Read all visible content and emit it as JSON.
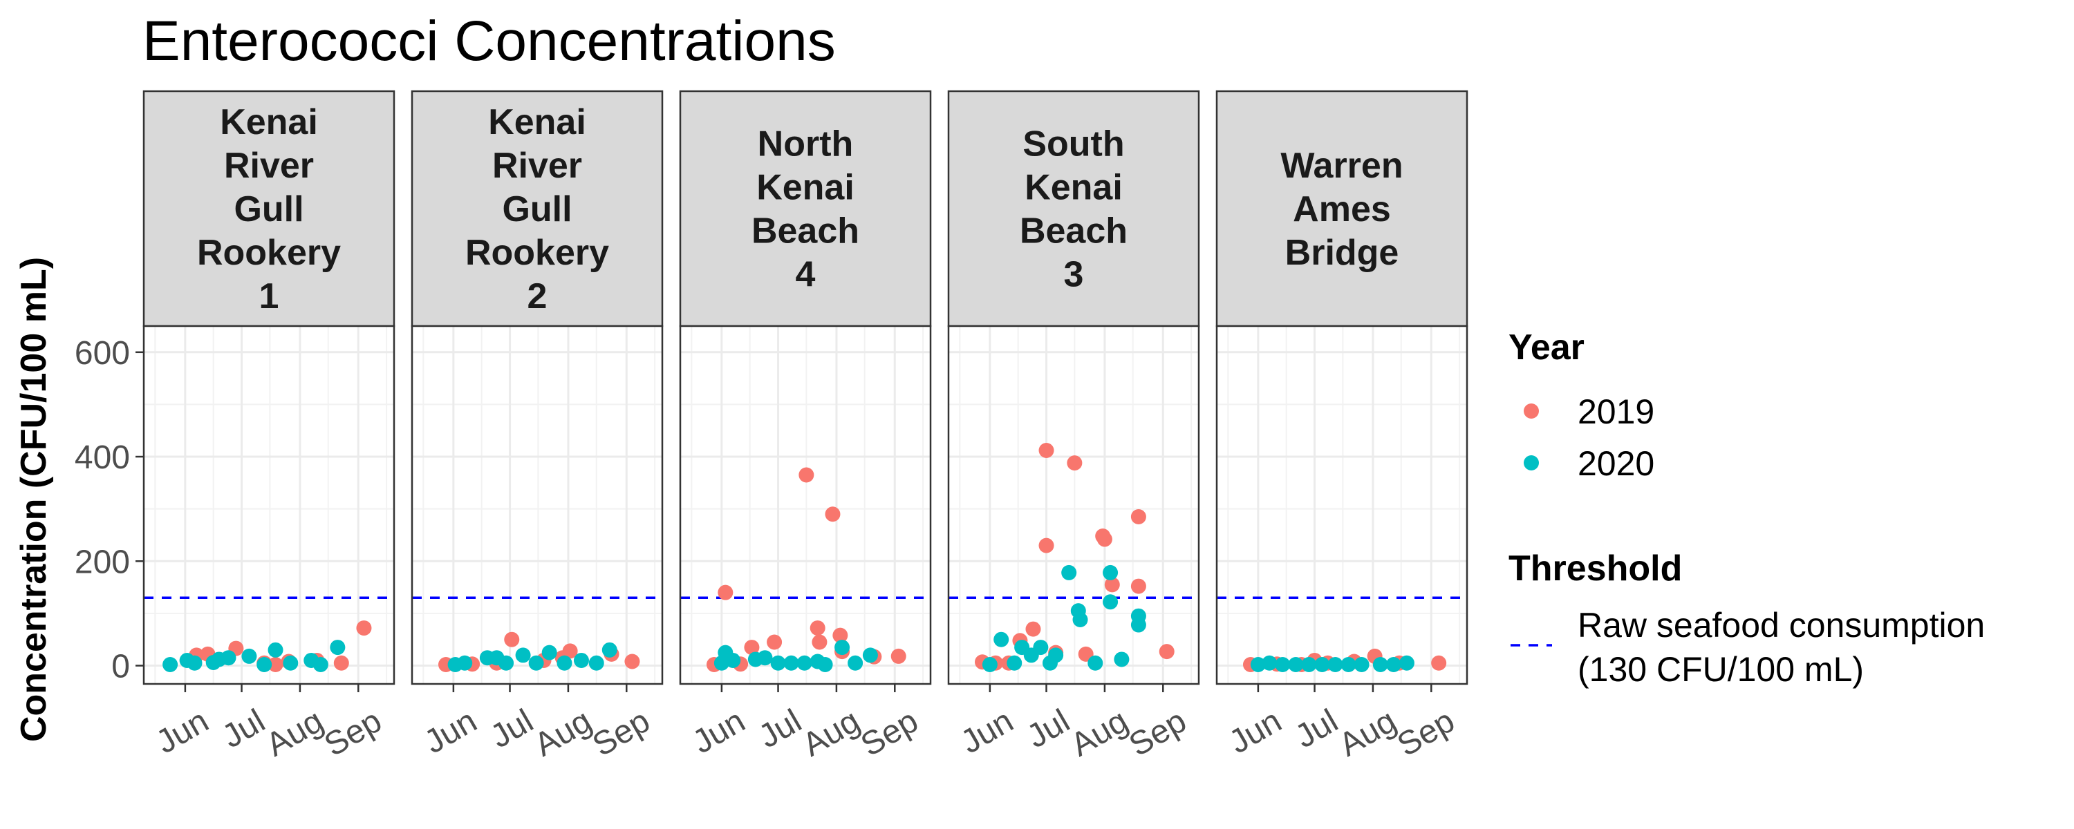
{
  "chart_data": {
    "type": "scatter",
    "title": "Enterococci Concentrations",
    "ylabel": "Concentration (CFU/100 mL)",
    "xlabel": "",
    "ylim": [
      -35,
      650
    ],
    "yticks": [
      0,
      200,
      400,
      600
    ],
    "xlim": [
      "2019-05-10",
      "2019-09-20"
    ],
    "xticks": [
      {
        "label": "Jun",
        "date": "2019-06-01"
      },
      {
        "label": "Jul",
        "date": "2019-07-01"
      },
      {
        "label": "Aug",
        "date": "2019-08-01"
      },
      {
        "label": "Sep",
        "date": "2019-09-01"
      }
    ],
    "grid": true,
    "legend_position": "right",
    "facets": [
      {
        "strip": [
          "Kenai",
          "River",
          "Gull",
          "Rookery",
          "1"
        ]
      },
      {
        "strip": [
          "Kenai",
          "River",
          "Gull",
          "Rookery",
          "2"
        ]
      },
      {
        "strip": [
          "North",
          "Kenai",
          "Beach",
          "4"
        ]
      },
      {
        "strip": [
          "South",
          "Kenai",
          "Beach",
          "3"
        ]
      },
      {
        "strip": [
          "Warren",
          "Ames",
          "Bridge"
        ]
      }
    ],
    "series": [
      {
        "name": "2019",
        "color": "#f8766d",
        "points": [
          {
            "facet": 0,
            "x": "2019-06-07",
            "y": 20
          },
          {
            "facet": 0,
            "x": "2019-06-13",
            "y": 22
          },
          {
            "facet": 0,
            "x": "2019-06-28",
            "y": 33
          },
          {
            "facet": 0,
            "x": "2019-07-13",
            "y": 5
          },
          {
            "facet": 0,
            "x": "2019-07-19",
            "y": 2
          },
          {
            "facet": 0,
            "x": "2019-07-26",
            "y": 8
          },
          {
            "facet": 0,
            "x": "2019-08-10",
            "y": 10
          },
          {
            "facet": 0,
            "x": "2019-08-23",
            "y": 5
          },
          {
            "facet": 0,
            "x": "2019-09-04",
            "y": 72
          },
          {
            "facet": 1,
            "x": "2019-05-28",
            "y": 2
          },
          {
            "facet": 1,
            "x": "2019-06-11",
            "y": 3
          },
          {
            "facet": 1,
            "x": "2019-06-24",
            "y": 5
          },
          {
            "facet": 1,
            "x": "2019-07-02",
            "y": 50
          },
          {
            "facet": 1,
            "x": "2019-07-19",
            "y": 10
          },
          {
            "facet": 1,
            "x": "2019-07-29",
            "y": 15
          },
          {
            "facet": 1,
            "x": "2019-08-02",
            "y": 28
          },
          {
            "facet": 1,
            "x": "2019-08-24",
            "y": 22
          },
          {
            "facet": 1,
            "x": "2019-09-04",
            "y": 8
          },
          {
            "facet": 2,
            "x": "2019-05-28",
            "y": 2
          },
          {
            "facet": 2,
            "x": "2019-06-03",
            "y": 140
          },
          {
            "facet": 2,
            "x": "2019-06-11",
            "y": 3
          },
          {
            "facet": 2,
            "x": "2019-06-17",
            "y": 35
          },
          {
            "facet": 2,
            "x": "2019-06-29",
            "y": 45
          },
          {
            "facet": 2,
            "x": "2019-07-16",
            "y": 365
          },
          {
            "facet": 2,
            "x": "2019-07-22",
            "y": 72
          },
          {
            "facet": 2,
            "x": "2019-07-23",
            "y": 45
          },
          {
            "facet": 2,
            "x": "2019-07-30",
            "y": 290
          },
          {
            "facet": 2,
            "x": "2019-08-03",
            "y": 58
          },
          {
            "facet": 2,
            "x": "2019-08-04",
            "y": 27
          },
          {
            "facet": 2,
            "x": "2019-08-21",
            "y": 17
          },
          {
            "facet": 2,
            "x": "2019-09-03",
            "y": 18
          },
          {
            "facet": 3,
            "x": "2019-05-28",
            "y": 7
          },
          {
            "facet": 3,
            "x": "2019-06-04",
            "y": 5
          },
          {
            "facet": 3,
            "x": "2019-06-11",
            "y": 5
          },
          {
            "facet": 3,
            "x": "2019-06-17",
            "y": 48
          },
          {
            "facet": 3,
            "x": "2019-06-24",
            "y": 70
          },
          {
            "facet": 3,
            "x": "2019-07-01",
            "y": 412
          },
          {
            "facet": 3,
            "x": "2019-07-01",
            "y": 230
          },
          {
            "facet": 3,
            "x": "2019-07-06",
            "y": 25
          },
          {
            "facet": 3,
            "x": "2019-07-16",
            "y": 388
          },
          {
            "facet": 3,
            "x": "2019-07-22",
            "y": 22
          },
          {
            "facet": 3,
            "x": "2019-07-31",
            "y": 248
          },
          {
            "facet": 3,
            "x": "2019-08-01",
            "y": 242
          },
          {
            "facet": 3,
            "x": "2019-08-05",
            "y": 155
          },
          {
            "facet": 3,
            "x": "2019-08-19",
            "y": 285
          },
          {
            "facet": 3,
            "x": "2019-08-19",
            "y": 152
          },
          {
            "facet": 3,
            "x": "2019-09-03",
            "y": 27
          },
          {
            "facet": 4,
            "x": "2019-05-28",
            "y": 2
          },
          {
            "facet": 4,
            "x": "2019-06-11",
            "y": 3
          },
          {
            "facet": 4,
            "x": "2019-06-24",
            "y": 2
          },
          {
            "facet": 4,
            "x": "2019-07-01",
            "y": 10
          },
          {
            "facet": 4,
            "x": "2019-07-08",
            "y": 5
          },
          {
            "facet": 4,
            "x": "2019-07-22",
            "y": 8
          },
          {
            "facet": 4,
            "x": "2019-08-02",
            "y": 18
          },
          {
            "facet": 4,
            "x": "2019-08-15",
            "y": 5
          },
          {
            "facet": 4,
            "x": "2019-09-05",
            "y": 5
          }
        ]
      },
      {
        "name": "2020",
        "color": "#00bfc4",
        "points": [
          {
            "facet": 0,
            "x": "2019-05-24",
            "y": 2
          },
          {
            "facet": 0,
            "x": "2019-06-02",
            "y": 10
          },
          {
            "facet": 0,
            "x": "2019-06-06",
            "y": 5
          },
          {
            "facet": 0,
            "x": "2019-06-16",
            "y": 6
          },
          {
            "facet": 0,
            "x": "2019-06-19",
            "y": 12
          },
          {
            "facet": 0,
            "x": "2019-06-24",
            "y": 15
          },
          {
            "facet": 0,
            "x": "2019-07-05",
            "y": 18
          },
          {
            "facet": 0,
            "x": "2019-07-13",
            "y": 2
          },
          {
            "facet": 0,
            "x": "2019-07-19",
            "y": 30
          },
          {
            "facet": 0,
            "x": "2019-07-27",
            "y": 5
          },
          {
            "facet": 0,
            "x": "2019-08-07",
            "y": 10
          },
          {
            "facet": 0,
            "x": "2019-08-12",
            "y": 2
          },
          {
            "facet": 0,
            "x": "2019-08-21",
            "y": 35
          },
          {
            "facet": 1,
            "x": "2019-06-02",
            "y": 2
          },
          {
            "facet": 1,
            "x": "2019-06-07",
            "y": 5
          },
          {
            "facet": 1,
            "x": "2019-06-19",
            "y": 15
          },
          {
            "facet": 1,
            "x": "2019-06-24",
            "y": 15
          },
          {
            "facet": 1,
            "x": "2019-06-29",
            "y": 5
          },
          {
            "facet": 1,
            "x": "2019-07-08",
            "y": 20
          },
          {
            "facet": 1,
            "x": "2019-07-15",
            "y": 5
          },
          {
            "facet": 1,
            "x": "2019-07-22",
            "y": 25
          },
          {
            "facet": 1,
            "x": "2019-07-30",
            "y": 5
          },
          {
            "facet": 1,
            "x": "2019-08-08",
            "y": 10
          },
          {
            "facet": 1,
            "x": "2019-08-16",
            "y": 5
          },
          {
            "facet": 1,
            "x": "2019-08-23",
            "y": 30
          },
          {
            "facet": 2,
            "x": "2019-06-01",
            "y": 5
          },
          {
            "facet": 2,
            "x": "2019-06-03",
            "y": 25
          },
          {
            "facet": 2,
            "x": "2019-06-07",
            "y": 10
          },
          {
            "facet": 2,
            "x": "2019-06-19",
            "y": 12
          },
          {
            "facet": 2,
            "x": "2019-06-24",
            "y": 15
          },
          {
            "facet": 2,
            "x": "2019-07-01",
            "y": 5
          },
          {
            "facet": 2,
            "x": "2019-07-08",
            "y": 5
          },
          {
            "facet": 2,
            "x": "2019-07-15",
            "y": 5
          },
          {
            "facet": 2,
            "x": "2019-07-22",
            "y": 8
          },
          {
            "facet": 2,
            "x": "2019-07-26",
            "y": 2
          },
          {
            "facet": 2,
            "x": "2019-08-04",
            "y": 35
          },
          {
            "facet": 2,
            "x": "2019-08-11",
            "y": 5
          },
          {
            "facet": 2,
            "x": "2019-08-19",
            "y": 20
          },
          {
            "facet": 3,
            "x": "2019-06-01",
            "y": 2
          },
          {
            "facet": 3,
            "x": "2019-06-07",
            "y": 50
          },
          {
            "facet": 3,
            "x": "2019-06-14",
            "y": 5
          },
          {
            "facet": 3,
            "x": "2019-06-18",
            "y": 35
          },
          {
            "facet": 3,
            "x": "2019-06-23",
            "y": 20
          },
          {
            "facet": 3,
            "x": "2019-06-28",
            "y": 35
          },
          {
            "facet": 3,
            "x": "2019-07-03",
            "y": 5
          },
          {
            "facet": 3,
            "x": "2019-07-06",
            "y": 20
          },
          {
            "facet": 3,
            "x": "2019-07-13",
            "y": 178
          },
          {
            "facet": 3,
            "x": "2019-07-18",
            "y": 105
          },
          {
            "facet": 3,
            "x": "2019-07-19",
            "y": 88
          },
          {
            "facet": 3,
            "x": "2019-07-27",
            "y": 5
          },
          {
            "facet": 3,
            "x": "2019-08-04",
            "y": 178
          },
          {
            "facet": 3,
            "x": "2019-08-04",
            "y": 122
          },
          {
            "facet": 3,
            "x": "2019-08-10",
            "y": 12
          },
          {
            "facet": 3,
            "x": "2019-08-19",
            "y": 95
          },
          {
            "facet": 3,
            "x": "2019-08-19",
            "y": 78
          },
          {
            "facet": 4,
            "x": "2019-06-01",
            "y": 2
          },
          {
            "facet": 4,
            "x": "2019-06-07",
            "y": 5
          },
          {
            "facet": 4,
            "x": "2019-06-14",
            "y": 2
          },
          {
            "facet": 4,
            "x": "2019-06-21",
            "y": 2
          },
          {
            "facet": 4,
            "x": "2019-06-28",
            "y": 2
          },
          {
            "facet": 4,
            "x": "2019-07-05",
            "y": 2
          },
          {
            "facet": 4,
            "x": "2019-07-12",
            "y": 2
          },
          {
            "facet": 4,
            "x": "2019-07-19",
            "y": 2
          },
          {
            "facet": 4,
            "x": "2019-07-26",
            "y": 2
          },
          {
            "facet": 4,
            "x": "2019-08-05",
            "y": 2
          },
          {
            "facet": 4,
            "x": "2019-08-12",
            "y": 2
          },
          {
            "facet": 4,
            "x": "2019-08-19",
            "y": 5
          }
        ]
      }
    ],
    "threshold": {
      "value": 130,
      "color": "#0000ff"
    },
    "legend": {
      "year_title": "Year",
      "year_items": [
        {
          "label": "2019",
          "color": "#f8766d"
        },
        {
          "label": "2020",
          "color": "#00bfc4"
        }
      ],
      "threshold_title": "Threshold",
      "threshold_label": [
        "Raw seafood consumption",
        "(130 CFU/100 mL)"
      ]
    }
  }
}
